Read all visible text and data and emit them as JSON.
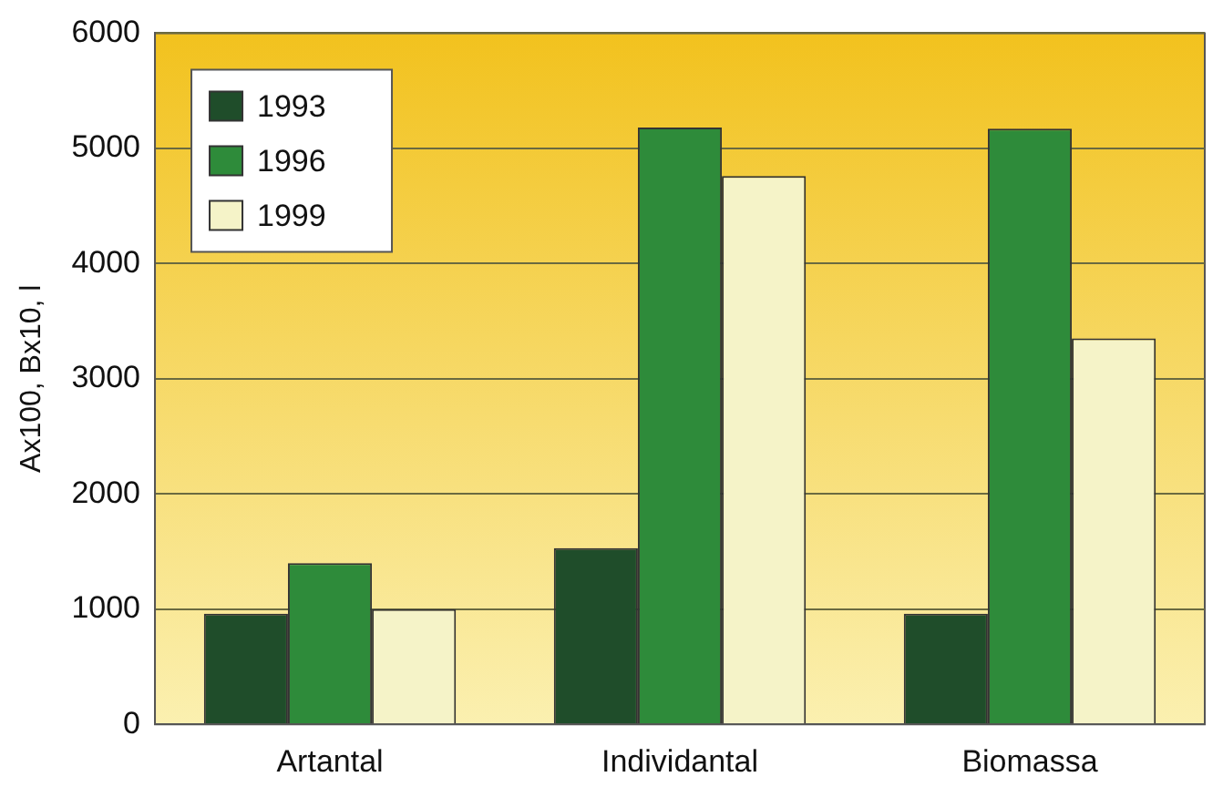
{
  "chart_data": {
    "type": "bar",
    "ylabel": "Ax100, Bx10, l",
    "categories": [
      "Artantal",
      "Individantal",
      "Biomassa"
    ],
    "series": [
      {
        "name": "1993",
        "color": "#1f4d2a",
        "values": [
          960,
          1530,
          960
        ]
      },
      {
        "name": "1996",
        "color": "#2e8b3a",
        "values": [
          1400,
          5180,
          5170
        ]
      },
      {
        "name": "1999",
        "color": "#f5f3c8",
        "values": [
          1000,
          4760,
          3350
        ]
      }
    ],
    "ylim": [
      0,
      6000
    ],
    "yticks": [
      0,
      1000,
      2000,
      3000,
      4000,
      5000,
      6000
    ],
    "grid": "y",
    "legend": "top left"
  }
}
